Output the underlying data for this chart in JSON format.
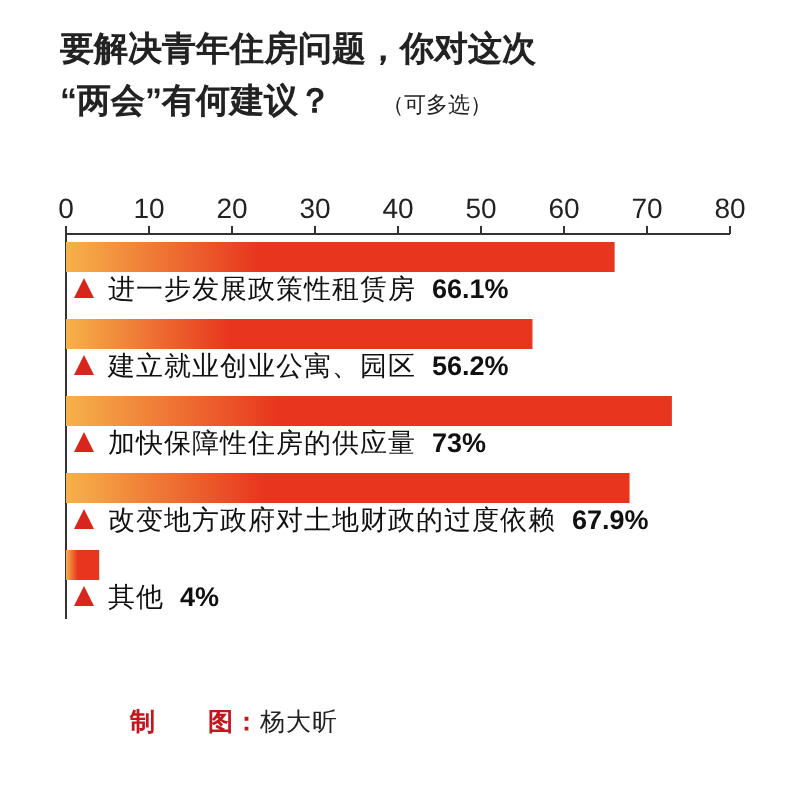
{
  "chart_data": {
    "type": "bar",
    "orientation": "horizontal",
    "title": "要解决青年住房问题，你对这次“两会”有何建议？",
    "subtitle": "（可多选）",
    "categories": [
      "进一步发展政策性租赁房",
      "建立就业创业公寓、园区",
      "加快保障性住房的供应量",
      "改变地方政府对土地财政的过度依赖",
      "其他"
    ],
    "values": [
      66.1,
      56.2,
      73,
      67.9,
      4
    ],
    "value_labels": [
      "66.1%",
      "56.2%",
      "73%",
      "67.9%",
      "4%"
    ],
    "color": "#e8361e",
    "xlim": [
      0,
      80
    ],
    "xticks": [
      0,
      10,
      20,
      30,
      40,
      50,
      60,
      70,
      80
    ],
    "grid": false,
    "annotations": [
      "制　　图：杨大昕"
    ]
  }
}
